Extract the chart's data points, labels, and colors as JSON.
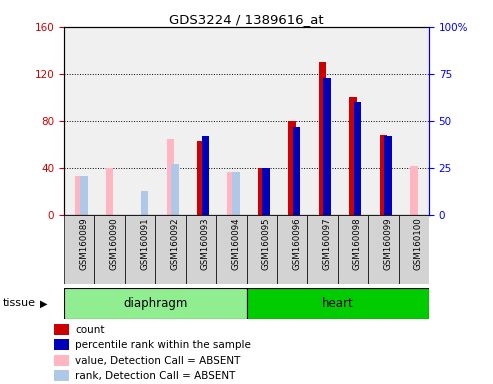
{
  "title": "GDS3224 / 1389616_at",
  "samples": [
    "GSM160089",
    "GSM160090",
    "GSM160091",
    "GSM160092",
    "GSM160093",
    "GSM160094",
    "GSM160095",
    "GSM160096",
    "GSM160097",
    "GSM160098",
    "GSM160099",
    "GSM160100"
  ],
  "diaphragm_indices": [
    0,
    1,
    2,
    3,
    4,
    5
  ],
  "heart_indices": [
    6,
    7,
    8,
    9,
    10,
    11
  ],
  "diaphragm_color": "#90EE90",
  "heart_color": "#00CC00",
  "count_vals": [
    null,
    null,
    null,
    null,
    63,
    null,
    40,
    80,
    130,
    100,
    68,
    null
  ],
  "pct_vals": [
    null,
    null,
    null,
    null,
    42,
    null,
    25,
    47,
    73,
    60,
    42,
    null
  ],
  "val_absent": [
    33,
    40,
    null,
    65,
    null,
    37,
    null,
    null,
    null,
    null,
    null,
    42
  ],
  "rank_absent": [
    21,
    null,
    13,
    27,
    null,
    23,
    null,
    null,
    null,
    null,
    null,
    null
  ],
  "count_color": "#CC0000",
  "percentile_color": "#0000BB",
  "absent_value_color": "#FFB6C1",
  "absent_rank_color": "#B0C8E8",
  "ylim_left": [
    0,
    160
  ],
  "ylim_right": [
    0,
    100
  ],
  "yticks_left": [
    0,
    40,
    80,
    120,
    160
  ],
  "yticks_right": [
    0,
    25,
    50,
    75,
    100
  ],
  "background_plot": "#F0F0F0",
  "cell_color": "#D3D3D3"
}
